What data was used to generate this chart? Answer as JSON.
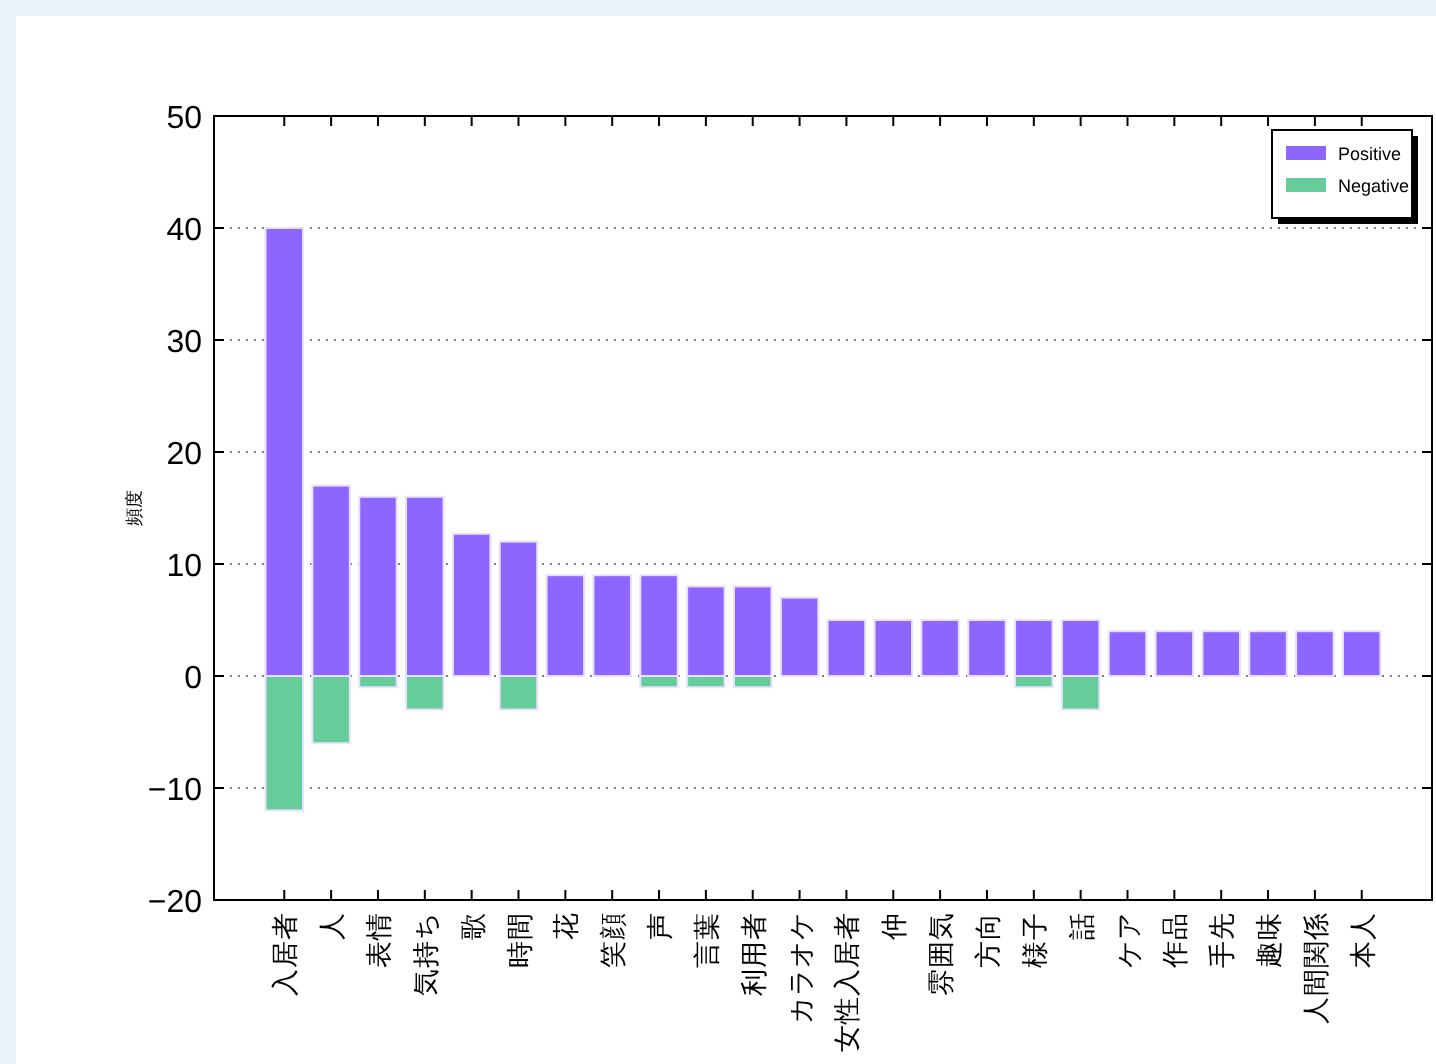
{
  "chart_data": {
    "type": "bar",
    "ylabel": "頻度",
    "categories": [
      "入居者",
      "人",
      "表情",
      "気持ち",
      "歌",
      "時間",
      "花",
      "笑顔",
      "声",
      "言葉",
      "利用者",
      "カラオケ",
      "女性入居者",
      "仲",
      "雰囲気",
      "方向",
      "様子",
      "話",
      "ケア",
      "作品",
      "手先",
      "趣味",
      "人間関係",
      "本人"
    ],
    "series": [
      {
        "name": "Positive",
        "color": "#8c66ff",
        "values": [
          40,
          17,
          16,
          16,
          12.7,
          12,
          9,
          9,
          9,
          8,
          8,
          7,
          5,
          5,
          5,
          5,
          5,
          5,
          4,
          4,
          4,
          4,
          4,
          4
        ]
      },
      {
        "name": "Negative",
        "color": "#66cc99",
        "values": [
          -12,
          -6,
          -1,
          -3,
          null,
          -3,
          null,
          null,
          -1,
          -1,
          -1,
          null,
          null,
          null,
          null,
          null,
          -1,
          -3,
          null,
          null,
          null,
          null,
          null,
          null
        ]
      }
    ],
    "ylim": [
      -20,
      50
    ],
    "yticks": [
      -20,
      -10,
      0,
      10,
      20,
      30,
      40,
      50
    ],
    "grid": "y",
    "legend": "top right"
  }
}
